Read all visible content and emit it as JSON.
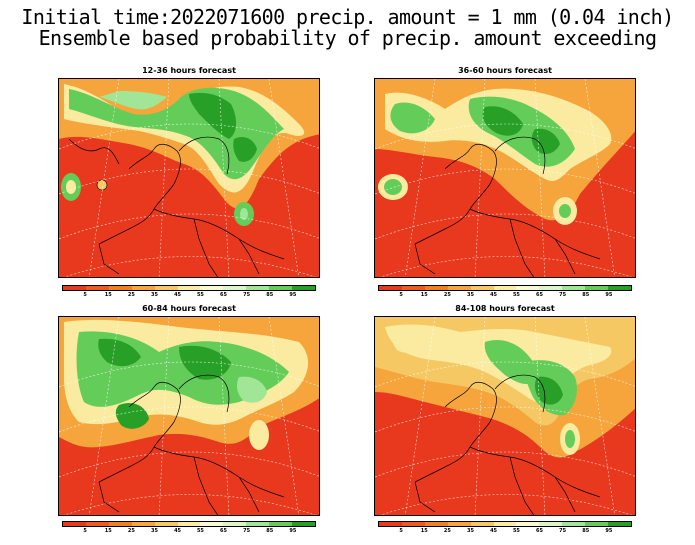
{
  "title_line1": "Initial time:2022071600 precip. amount = 1 mm (0.04 inch)",
  "title_line2": "Ensemble based probability of precip. amount exceeding",
  "panels": [
    {
      "title": "12-36 hours forecast"
    },
    {
      "title": "36-60 hours forecast"
    },
    {
      "title": "60-84 hours forecast"
    },
    {
      "title": "84-108 hours forecast"
    }
  ],
  "colorbar": {
    "colors": [
      "#e8391e",
      "#f05a1e",
      "#f0821e",
      "#f5a53c",
      "#f5c864",
      "#faeba0",
      "#fafad2",
      "#dcf5c8",
      "#a0e696",
      "#64cd5a",
      "#28a028"
    ],
    "labels": [
      "5",
      "15",
      "25",
      "35",
      "45",
      "55",
      "65",
      "75",
      "85",
      "95"
    ]
  }
}
